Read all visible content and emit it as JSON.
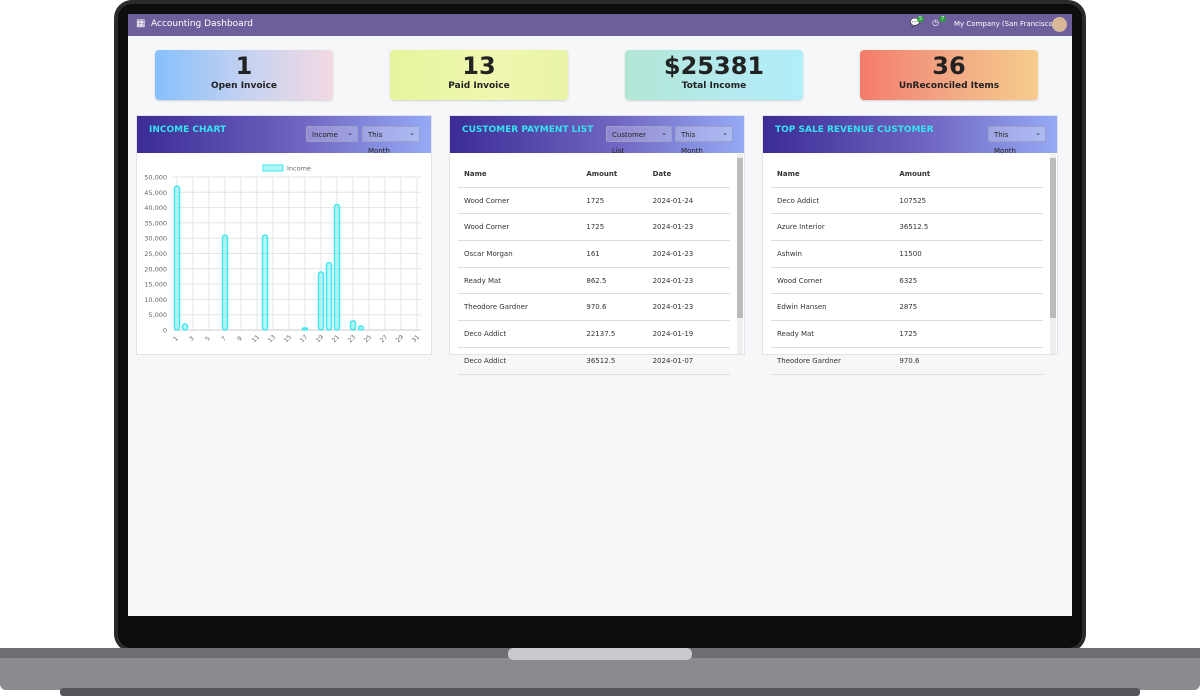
{
  "header": {
    "title": "Accounting Dashboard",
    "badges": [
      "5",
      "7"
    ],
    "company": "My Company (San Francisco)"
  },
  "cards": [
    {
      "value": "1",
      "label": "Open Invoice"
    },
    {
      "value": "13",
      "label": "Paid Invoice"
    },
    {
      "value": "$25381",
      "label": "Total Income"
    },
    {
      "value": "36",
      "label": "UnReconciled Items"
    }
  ],
  "chart_data": {
    "type": "bar",
    "title": "INCOME CHART",
    "categories": [
      "1",
      null,
      "3",
      null,
      "5",
      null,
      "7",
      null,
      "9",
      null,
      "11",
      null,
      "13",
      null,
      "15",
      null,
      "17",
      null,
      "19",
      null,
      "21",
      null,
      "23",
      null,
      "25",
      null,
      "27",
      null,
      "29",
      null,
      "31"
    ],
    "series": [
      {
        "name": "Income",
        "color": "#3ee8ee",
        "values": [
          47000,
          2000,
          0,
          0,
          0,
          0,
          31000,
          0,
          0,
          0,
          0,
          31000,
          0,
          0,
          0,
          0,
          700,
          0,
          19000,
          22000,
          41000,
          0,
          3000,
          1300,
          0,
          0,
          0,
          0,
          0,
          0,
          0
        ]
      }
    ],
    "ylim": [
      0,
      50000
    ],
    "yticks": [
      0,
      {
        "value": 5000,
        "label": "5,000"
      },
      {
        "value": 10000,
        "label": "10,000"
      },
      {
        "value": 15000,
        "label": "15,000"
      },
      {
        "value": 20000,
        "label": "20,000"
      },
      {
        "value": 25000,
        "label": "25,000"
      },
      {
        "value": 30000,
        "label": "30,000"
      },
      {
        "value": 35000,
        "label": "35,000"
      },
      {
        "value": 40000,
        "label": "40,000"
      },
      {
        "value": 45000,
        "label": "45,000"
      },
      {
        "value": 50000,
        "label": "50,000"
      }
    ],
    "grid": true,
    "legend": "top",
    "filters": [
      "Income",
      "This Month"
    ]
  },
  "payments": {
    "title": "CUSTOMER PAYMENT LIST",
    "filters": [
      "Customer List",
      "This Month"
    ],
    "columns": [
      "Name",
      "Amount",
      "Date"
    ],
    "rows": [
      [
        "Wood Corner",
        "1725",
        "2024-01-24"
      ],
      [
        "Wood Corner",
        "1725",
        "2024-01-23"
      ],
      [
        "Oscar Morgan",
        "161",
        "2024-01-23"
      ],
      [
        "Ready Mat",
        "862.5",
        "2024-01-23"
      ],
      [
        "Theodore Gardner",
        "970.6",
        "2024-01-23"
      ],
      [
        "Deco Addict",
        "22137.5",
        "2024-01-19"
      ],
      [
        "Deco Addict",
        "36512.5",
        "2024-01-07"
      ]
    ]
  },
  "top_customers": {
    "title": "TOP SALE REVENUE CUSTOMER",
    "filters": [
      "This Month"
    ],
    "columns": [
      "Name",
      "Amount"
    ],
    "rows": [
      [
        "Deco Addict",
        "107525"
      ],
      [
        "Azure Interior",
        "36512.5"
      ],
      [
        "Ashwin",
        "11500"
      ],
      [
        "Wood Corner",
        "6325"
      ],
      [
        "Edwin Hansen",
        "2875"
      ],
      [
        "Ready Mat",
        "1725"
      ],
      [
        "Theodore Gardner",
        "970.6"
      ]
    ]
  }
}
